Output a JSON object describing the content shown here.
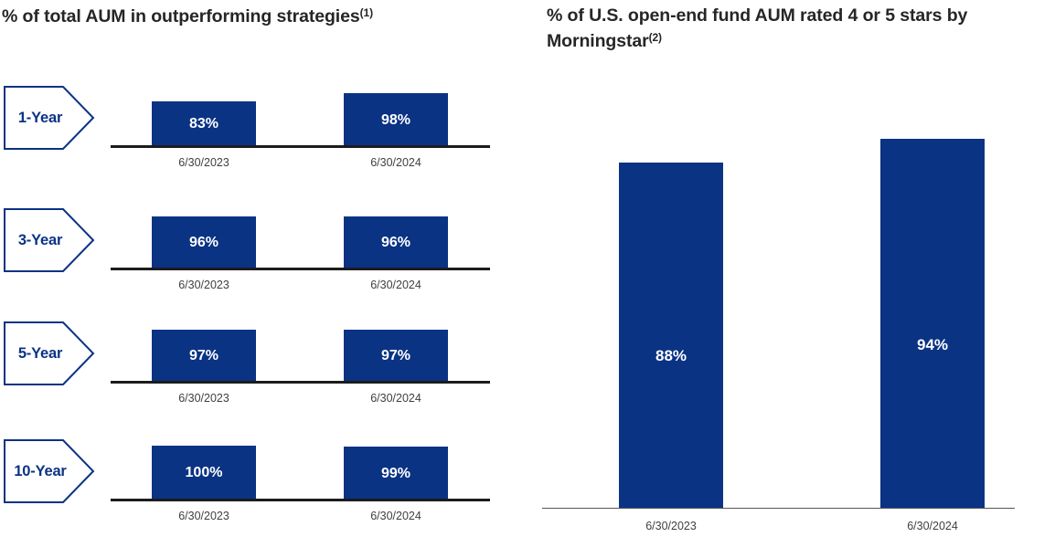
{
  "colors": {
    "bar_navy": "#0A3384",
    "pointer_border_navy": "#0A3384",
    "pointer_text_navy": "#0A3384",
    "pointer_fill": "#ffffff",
    "title_text": "#262626",
    "axis_dark": "#1c1c1c",
    "axis_light": "#555555",
    "date_text": "#3f3f3f",
    "bar_value_text": "#ffffff"
  },
  "chart_data": [
    {
      "type": "bar",
      "title": "% of total AUM in outperforming strategies",
      "title_superscript": "(1)",
      "categories": [
        "6/30/2023",
        "6/30/2024"
      ],
      "value_suffix": "%",
      "ylim": [
        0,
        100
      ],
      "grid": false,
      "legend": false,
      "layout_hint": "four small paired-bar charts stacked vertically, one per period, arrow-shaped period label at left, value labels inside bars",
      "groups": [
        {
          "label": "1-Year",
          "values": [
            83,
            98
          ]
        },
        {
          "label": "3-Year",
          "values": [
            96,
            96
          ]
        },
        {
          "label": "5-Year",
          "values": [
            97,
            97
          ]
        },
        {
          "label": "10-Year",
          "values": [
            100,
            99
          ]
        }
      ]
    },
    {
      "type": "bar",
      "title": "% of U.S. open-end fund AUM rated 4 or 5 stars by Morningstar",
      "title_superscript": "(2)",
      "categories": [
        "6/30/2023",
        "6/30/2024"
      ],
      "value_suffix": "%",
      "ylim": [
        0,
        100
      ],
      "grid": false,
      "legend": false,
      "layout_hint": "two tall bars, value labels in white inside bars near vertical middle",
      "values": [
        88,
        94
      ]
    }
  ]
}
